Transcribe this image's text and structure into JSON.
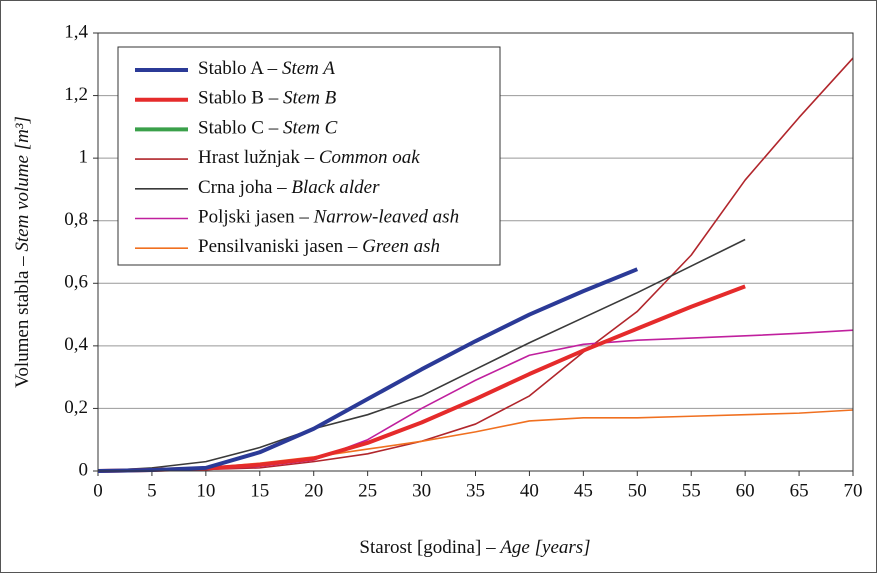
{
  "chart_data": {
    "type": "line",
    "x_label": "Starost [godina] –",
    "x_label_en": "Age [years]",
    "y_label": "Volumen stabla –",
    "y_label_en": "Stem volume [m³]",
    "x": [
      0,
      5,
      10,
      15,
      20,
      25,
      30,
      35,
      40,
      45,
      50,
      55,
      60,
      65,
      70
    ],
    "xlim": [
      0,
      70
    ],
    "xticks": [
      0,
      5,
      10,
      15,
      20,
      25,
      30,
      35,
      40,
      45,
      50,
      55,
      60,
      65,
      70
    ],
    "ylim": [
      0,
      1.4
    ],
    "yticks": [
      0,
      {
        "value": 0.2,
        "label": "0,2"
      },
      {
        "value": 0.4,
        "label": "0,4"
      },
      {
        "value": 0.6,
        "label": "0,6"
      },
      {
        "value": 0.8,
        "label": "0,8"
      },
      1,
      {
        "value": 1.2,
        "label": "1,2"
      },
      {
        "value": 1.4,
        "label": "1,4"
      }
    ],
    "grid": true,
    "series": [
      {
        "name": "Stablo A –",
        "name_en": "Stem A",
        "color": "#2b3a97",
        "width": 4,
        "values": [
          0,
          0.003,
          0.01,
          0.06,
          0.135,
          0.23,
          0.325,
          0.415,
          0.5,
          0.575,
          0.645,
          null,
          null,
          null,
          null
        ]
      },
      {
        "name": "Stablo B –",
        "name_en": "Stem B",
        "color": "#e52b2b",
        "width": 4,
        "values": [
          0,
          0.003,
          0.008,
          0.02,
          0.04,
          0.09,
          0.155,
          0.23,
          0.31,
          0.385,
          0.455,
          0.525,
          0.59,
          null,
          null
        ]
      },
      {
        "name": "Stablo C –",
        "name_en": "Stem C",
        "color": "#3aa04a",
        "width": 4,
        "values": [
          null,
          null,
          null,
          null,
          null,
          null,
          null,
          null,
          null,
          null,
          null,
          null,
          null,
          null,
          null
        ]
      },
      {
        "name": "Hrast lužnjak –",
        "name_en": "Common oak",
        "color": "#b1262c",
        "width": 1.6,
        "values": [
          0,
          0.002,
          0.005,
          0.01,
          0.03,
          0.055,
          0.095,
          0.15,
          0.24,
          0.38,
          0.51,
          0.69,
          0.93,
          1.13,
          1.32
        ]
      },
      {
        "name": "Crna joha –",
        "name_en": "Black alder",
        "color": "#3a3a3a",
        "width": 1.6,
        "values": [
          0,
          0.01,
          0.03,
          0.075,
          0.135,
          0.18,
          0.24,
          0.325,
          0.41,
          0.49,
          0.57,
          0.655,
          0.74,
          null,
          null
        ]
      },
      {
        "name": "Poljski jasen –",
        "name_en": "Narrow-leaved ash",
        "color": "#c0209e",
        "width": 1.6,
        "values": [
          0,
          0.003,
          0.005,
          0.015,
          0.035,
          0.1,
          0.2,
          0.29,
          0.37,
          0.405,
          0.418,
          0.425,
          0.432,
          0.44,
          0.45
        ]
      },
      {
        "name": "Pensilvaniski jasen –",
        "name_en": "Green ash",
        "color": "#f07020",
        "width": 1.6,
        "values": [
          0,
          0.005,
          0.01,
          0.025,
          0.045,
          0.07,
          0.095,
          0.125,
          0.16,
          0.17,
          0.17,
          0.175,
          0.18,
          0.185,
          0.195
        ]
      }
    ]
  }
}
